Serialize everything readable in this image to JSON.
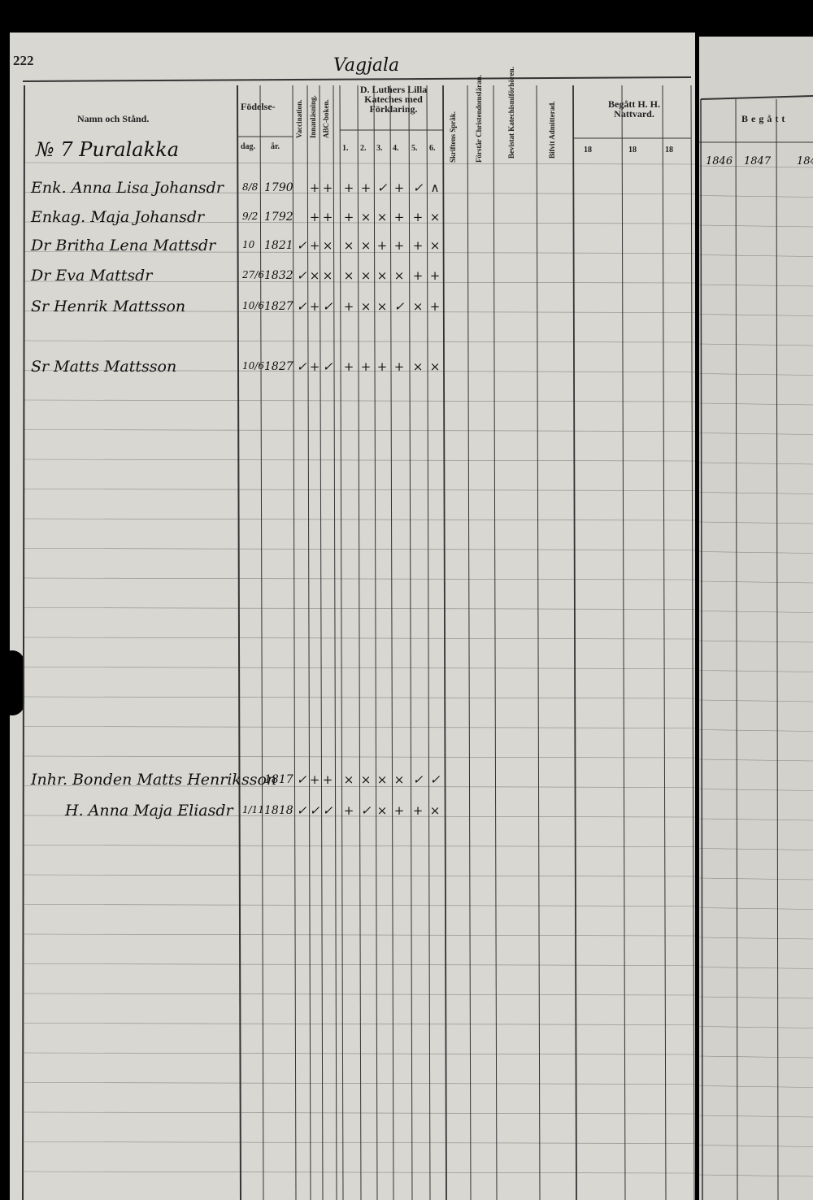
{
  "page_number": "222",
  "place": "Vagjala",
  "headers": {
    "name": "Namn och Stånd.",
    "birth": "Födelse-",
    "day": "dag.",
    "year": "år.",
    "vaccination": "Vaccination.",
    "reading": "Innanläsning.",
    "abc": "ABC-boken.",
    "catechism": "D. Luthers Lilla Kateches med Förklaring.",
    "parts": [
      "1.",
      "2.",
      "3.",
      "4.",
      "5.",
      "6."
    ],
    "scripture": "Skriftens Språk.",
    "understands": "Förstår Christendomsläran.",
    "attended": "Bevistat Katechismiförhören.",
    "admitted": "Bifvit Admitterad.",
    "communion": "Begått H. H. Nattvard.",
    "communion_years": [
      "18",
      "18",
      "18"
    ],
    "right_header": "Begått",
    "right_years": [
      "1846",
      "1847",
      "184"
    ]
  },
  "household": "№ 7 Puralakka",
  "rows": [
    {
      "name": "Enk. Anna Lisa Johansdr",
      "day": "8/8",
      "year": "1790",
      "marks": [
        "",
        "+",
        "+",
        "+",
        "+",
        "✓",
        "+",
        "✓",
        "∧"
      ]
    },
    {
      "name": "Enkag. Maja Johansdr",
      "day": "9/2",
      "year": "1792",
      "marks": [
        "",
        "+",
        "+",
        "+",
        "×",
        "×",
        "+",
        "+",
        "×"
      ]
    },
    {
      "name": "Dr Britha Lena Mattsdr",
      "day": "10",
      "year": "1821",
      "marks": [
        "✓",
        "+",
        "×",
        "×",
        "×",
        "+",
        "+",
        "+",
        "×"
      ]
    },
    {
      "name": "Dr Eva Mattsdr",
      "day": "27/6",
      "year": "1832",
      "marks": [
        "✓",
        "×",
        "×",
        "×",
        "×",
        "×",
        "×",
        "+",
        "+"
      ]
    },
    {
      "name": "Sr Henrik Mattsson",
      "day": "10/6",
      "year": "1827",
      "marks": [
        "✓",
        "+",
        "✓",
        "+",
        "×",
        "×",
        "✓",
        "×",
        "+"
      ]
    },
    {
      "name": "Sr Matts Mattsson",
      "day": "10/6",
      "year": "1827",
      "marks": [
        "✓",
        "+",
        "✓",
        "+",
        "+",
        "+",
        "+",
        "×",
        "×"
      ]
    },
    {
      "name": "Inhr. Bonden Matts Henriksson",
      "day": "",
      "year": "1817",
      "marks": [
        "✓",
        "+",
        "+",
        "×",
        "×",
        "×",
        "×",
        "✓",
        "✓"
      ]
    },
    {
      "name": "H. Anna Maja Eliasdr",
      "day": "1/11",
      "year": "1818",
      "marks": [
        "✓",
        "✓",
        "✓",
        "+",
        "✓",
        "×",
        "+",
        "+",
        "×"
      ]
    }
  ]
}
